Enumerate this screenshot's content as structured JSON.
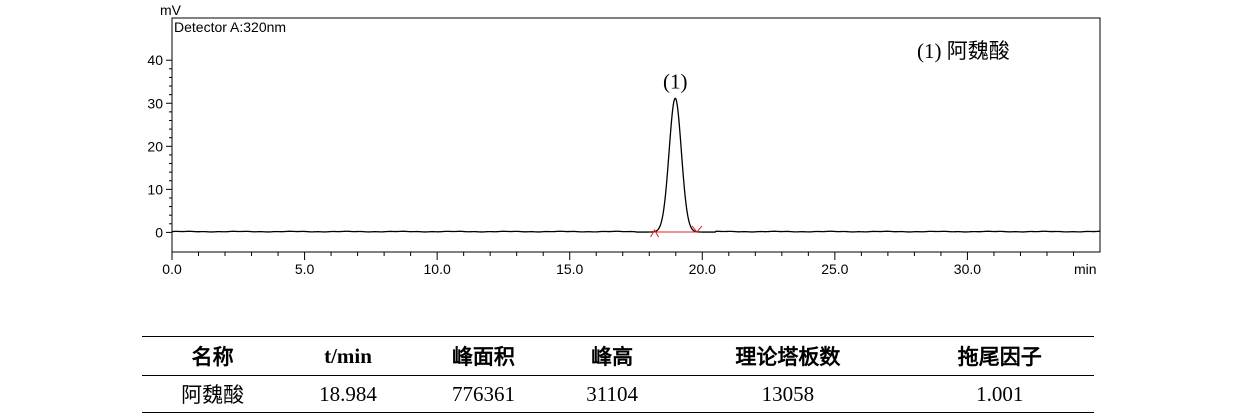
{
  "chart_data": {
    "type": "line",
    "detector_label": "Detector A:320nm",
    "y_unit": "mV",
    "x_unit": "min",
    "xlim": [
      0,
      35
    ],
    "ylim": [
      -2,
      44
    ],
    "x_ticks": [
      0,
      5,
      10,
      15,
      20,
      25,
      30
    ],
    "x_tick_labels": [
      "0.0",
      "5.0",
      "10.0",
      "15.0",
      "20.0",
      "25.0",
      "30.0"
    ],
    "y_ticks": [
      0,
      10,
      20,
      30,
      40
    ],
    "y_tick_labels": [
      "0",
      "10",
      "20",
      "30",
      "40"
    ],
    "legend_text": "(1)  阿魏酸",
    "peaks": [
      {
        "label": "(1)",
        "retention_time": 18.98,
        "height": 31.1,
        "start": 18.2,
        "end": 19.8
      }
    ],
    "grid": false
  },
  "table": {
    "headers": [
      "名称",
      "t/min",
      "峰面积",
      "峰高",
      "理论塔板数",
      "拖尾因子"
    ],
    "rows": [
      [
        "阿魏酸",
        "18.984",
        "776361",
        "31104",
        "13058",
        "1.001"
      ]
    ]
  }
}
